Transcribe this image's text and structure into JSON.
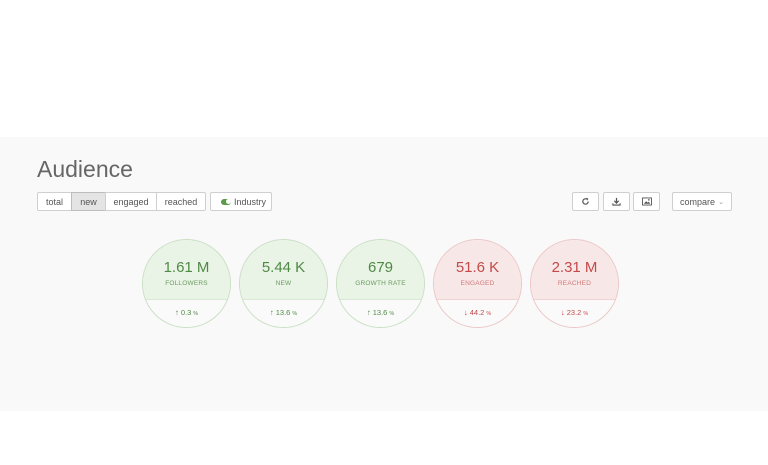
{
  "section": {
    "title": "Audience"
  },
  "filters": {
    "tabs": [
      {
        "label": "total",
        "active": false
      },
      {
        "label": "new",
        "active": true
      },
      {
        "label": "engaged",
        "active": false
      },
      {
        "label": "reached",
        "active": false
      }
    ],
    "industry_label": "Industry",
    "industry_toggle_on": true
  },
  "toolbar": {
    "icons": [
      "refresh-icon",
      "download-icon",
      "image-icon"
    ],
    "compare_label": "compare",
    "compare_caret": "⌄"
  },
  "metrics": [
    {
      "value": "1.61 M",
      "label": "FOLLOWERS",
      "change": "0.3",
      "unit": "%",
      "direction": "up",
      "status": "positive"
    },
    {
      "value": "5.44 K",
      "label": "NEW",
      "change": "13.6",
      "unit": "%",
      "direction": "up",
      "status": "positive"
    },
    {
      "value": "679",
      "label": "GROWTH RATE",
      "change": "13.6",
      "unit": "%",
      "direction": "up",
      "status": "positive"
    },
    {
      "value": "51.6 K",
      "label": "ENGAGED",
      "change": "44.2",
      "unit": "%",
      "direction": "down",
      "status": "negative"
    },
    {
      "value": "2.31 M",
      "label": "REACHED",
      "change": "23.2",
      "unit": "%",
      "direction": "down",
      "status": "negative"
    }
  ],
  "colors": {
    "positive": "#4f8a44",
    "negative": "#c24a4a",
    "panel_bg": "#f9f9f9"
  }
}
